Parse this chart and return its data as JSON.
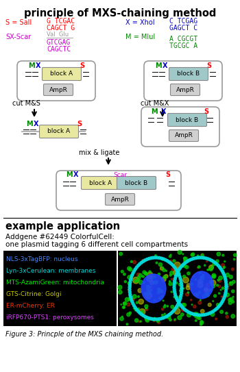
{
  "title": "principle of MXS-chaining method",
  "legend_title": "example application",
  "addgene_text1": "Addgene #62449 ColorfulCell:",
  "addgene_text2": "one plasmid tagging 6 different cell compartments",
  "figure_caption": "Figure 3: Princple of the MXS chaining method.",
  "s_label": "S = SalI",
  "s_color": "#ff0000",
  "sx_label": "SX-Scar",
  "sx_color": "#cc00cc",
  "x_label": "X = XhoI",
  "x_color": "#0000cc",
  "m_label": "M = MluI",
  "m_color": "#008800",
  "s_seq_top": "G TCGAC",
  "s_seq_bot": "CAGCT G",
  "sx_val_glu": "Val  Glu",
  "sx_seq_top": "GTCGAG",
  "sx_seq_bot": "CAGCTC",
  "x_seq_top": "C TCGAG",
  "x_seq_bot": "GAGCT C",
  "m_seq_top": "A CGCGT",
  "m_seq_bot": "TGCGC A",
  "blockA_color": "#e8e8a0",
  "blockB_color": "#a0c8c8",
  "ampr_color": "#d0d0d0",
  "plasmid_edge": "#999999",
  "legend_items": [
    {
      "text": "NLS-3xTagBFP: nucleus",
      "color": "#4488ff"
    },
    {
      "text": "Lyn-3xCerulean: membranes",
      "color": "#00dddd"
    },
    {
      "text": "MTS-AzamiGreen: mitochondria",
      "color": "#00ee00"
    },
    {
      "text": "GTS-Citrine: Golgi",
      "color": "#cccc00"
    },
    {
      "text": "ER-mCherry: ER",
      "color": "#ff3300"
    },
    {
      "text": "iRFP670-PTS1: peroxysomes",
      "color": "#dd44ff"
    }
  ]
}
